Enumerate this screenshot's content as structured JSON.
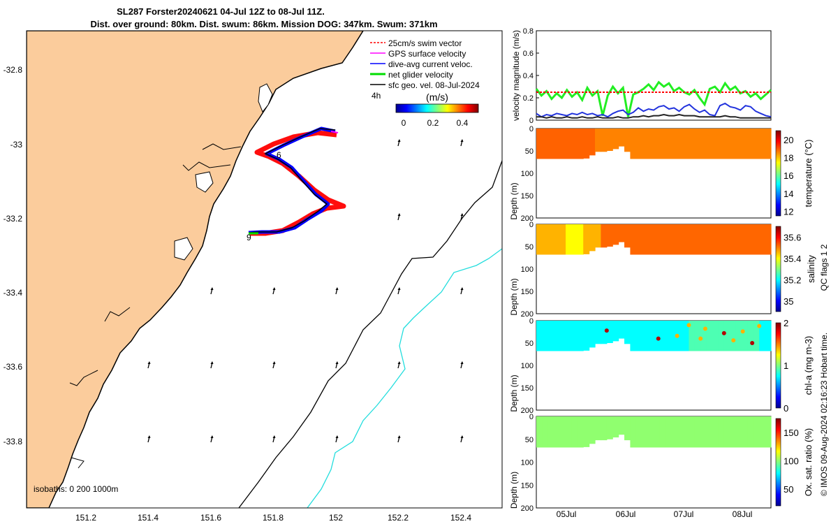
{
  "title": {
    "line1": "SL287 Forster20240621 04-Jul 12Z to 08-Jul 11Z.",
    "line2": "Dist. over ground: 80km. Dist. swum: 86km. Mission DOG: 347km. Swum: 371km"
  },
  "map": {
    "x_ticks": [
      "151.2",
      "151.4",
      "151.6",
      "151.8",
      "152",
      "152.2",
      "152.4"
    ],
    "y_ticks": [
      "-32.8",
      "-33",
      "-33.2",
      "-33.4",
      "-33.6",
      "-33.8"
    ],
    "legend": [
      {
        "label": "25cm/s swim vector",
        "color": "#ff0000"
      },
      {
        "label": "GPS surface velocity",
        "color": "#ff00ff"
      },
      {
        "label": "dive-avg current veloc.",
        "color": "#0000ff"
      },
      {
        "label": "net glider velocity",
        "color": "#00dd00"
      },
      {
        "label": "sfc geo. vel. 08-Jul-2024",
        "color": "#000000"
      }
    ],
    "legend_time": "4h",
    "colorbar_label": "(m/s)",
    "colorbar_ticks": [
      "0",
      "0.2",
      "0.4"
    ],
    "isobaths_label": "isobaths: 0   200  1000m",
    "track_labels": [
      "6",
      "9"
    ]
  },
  "chart_data": [
    {
      "type": "line",
      "title": "",
      "ylabel": "velocity magnitude (m/s)",
      "ylim": [
        0,
        0.8
      ],
      "yticks": [
        "0",
        "0.2",
        "0.4",
        "0.6",
        "0.8"
      ],
      "series": [
        {
          "name": "net glider velocity",
          "color": "#22ee22",
          "values": [
            0.28,
            0.22,
            0.26,
            0.19,
            0.24,
            0.2,
            0.27,
            0.21,
            0.25,
            0.18,
            0.29,
            0.22,
            0.26,
            0.04,
            0.22,
            0.3,
            0.24,
            0.29,
            0.03,
            0.23,
            0.25,
            0.28,
            0.32,
            0.27,
            0.34,
            0.3,
            0.33,
            0.26,
            0.29,
            0.25,
            0.23,
            0.27,
            0.2,
            0.14,
            0.28,
            0.3,
            0.25,
            0.33,
            0.27,
            0.3,
            0.24,
            0.26,
            0.21,
            0.24,
            0.19,
            0.23,
            0.27
          ]
        },
        {
          "name": "25cm/s swim vector",
          "color": "#ff0000",
          "values": [
            0.25,
            0.25,
            0.25,
            0.25,
            0.25,
            0.25,
            0.25,
            0.25,
            0.25,
            0.25,
            0.25,
            0.25,
            0.25,
            0.25,
            0.25,
            0.25,
            0.25,
            0.25,
            0.25,
            0.25,
            0.25,
            0.25,
            0.25,
            0.25,
            0.25,
            0.25,
            0.25,
            0.25,
            0.25,
            0.25,
            0.25,
            0.25,
            0.25,
            0.25,
            0.25,
            0.25,
            0.25,
            0.25,
            0.25,
            0.25,
            0.25,
            0.25,
            0.25,
            0.25,
            0.25,
            0.25,
            0.25
          ]
        },
        {
          "name": "dive-avg current veloc.",
          "color": "#2233dd",
          "values": [
            0.06,
            0.03,
            0.05,
            0.04,
            0.06,
            0.05,
            0.04,
            0.06,
            0.05,
            0.07,
            0.05,
            0.06,
            0.04,
            0.05,
            0.03,
            0.06,
            0.08,
            0.09,
            0.05,
            0.07,
            0.11,
            0.08,
            0.1,
            0.09,
            0.12,
            0.13,
            0.1,
            0.11,
            0.08,
            0.12,
            0.14,
            0.1,
            0.07,
            0.09,
            0.05,
            0.04,
            0.13,
            0.15,
            0.12,
            0.11,
            0.09,
            0.13,
            0.12,
            0.08,
            0.06,
            0.04,
            0.03
          ]
        },
        {
          "name": "sfc geo. vel.",
          "color": "#222222",
          "values": [
            0.03,
            0.03,
            0.02,
            0.03,
            0.02,
            0.02,
            0.03,
            0.02,
            0.02,
            0.03,
            0.02,
            0.02,
            0.03,
            0.02,
            0.02,
            0.02,
            0.03,
            0.02,
            0.02,
            0.03,
            0.03,
            0.04,
            0.03,
            0.04,
            0.04,
            0.05,
            0.04,
            0.04,
            0.05,
            0.04,
            0.04,
            0.04,
            0.03,
            0.03,
            0.03,
            0.03,
            0.03,
            0.04,
            0.03,
            0.03,
            0.02,
            0.02,
            0.02,
            0.02,
            0.02,
            0.02,
            0.02
          ]
        }
      ]
    },
    {
      "type": "heatmap",
      "variable": "temperature",
      "ylabel": "Depth (m)",
      "ylim": [
        0,
        200
      ],
      "yticks": [
        "0",
        "50",
        "100",
        "150",
        "200"
      ],
      "colorbar_label": "temperature (°C)",
      "colorbar_ticks": [
        "20",
        "18",
        "16",
        "14",
        "12"
      ],
      "range": [
        11.5,
        21
      ],
      "typical_value": 18.7
    },
    {
      "type": "heatmap",
      "variable": "salinity",
      "ylabel": "Depth (m)",
      "ylim": [
        0,
        200
      ],
      "yticks": [
        "0",
        "50",
        "100",
        "150",
        "200"
      ],
      "colorbar_label": "salinity",
      "colorbar_ticks": [
        "35.6",
        "35.4",
        "35.2",
        "35"
      ],
      "range": [
        34.9,
        35.7
      ],
      "typical_value": 35.55
    },
    {
      "type": "heatmap",
      "variable": "chl-a",
      "ylabel": "Depth (m)",
      "ylim": [
        0,
        200
      ],
      "yticks": [
        "0",
        "50",
        "100",
        "150",
        "200"
      ],
      "colorbar_label": "chl-a (mg m-3)",
      "colorbar_ticks": [
        "2",
        "1",
        "0"
      ],
      "range": [
        0,
        2
      ],
      "typical_value": 0.7
    },
    {
      "type": "heatmap",
      "variable": "oxygen saturation",
      "ylabel": "Depth (m)",
      "ylim": [
        0,
        200
      ],
      "yticks": [
        "0",
        "50",
        "100",
        "150",
        "200"
      ],
      "colorbar_label": "Ox. sat. ratio (%)",
      "colorbar_ticks": [
        "150",
        "100",
        "50"
      ],
      "range": [
        20,
        175
      ],
      "typical_value": 100
    }
  ],
  "time_axis": {
    "ticks": [
      "05Jul",
      "06Jul",
      "07Jul",
      "08Jul"
    ]
  },
  "qc_note": "QC flags 1  2",
  "footer": "© IMOS 09-Aug-2024 02:16:23 Hobart time."
}
